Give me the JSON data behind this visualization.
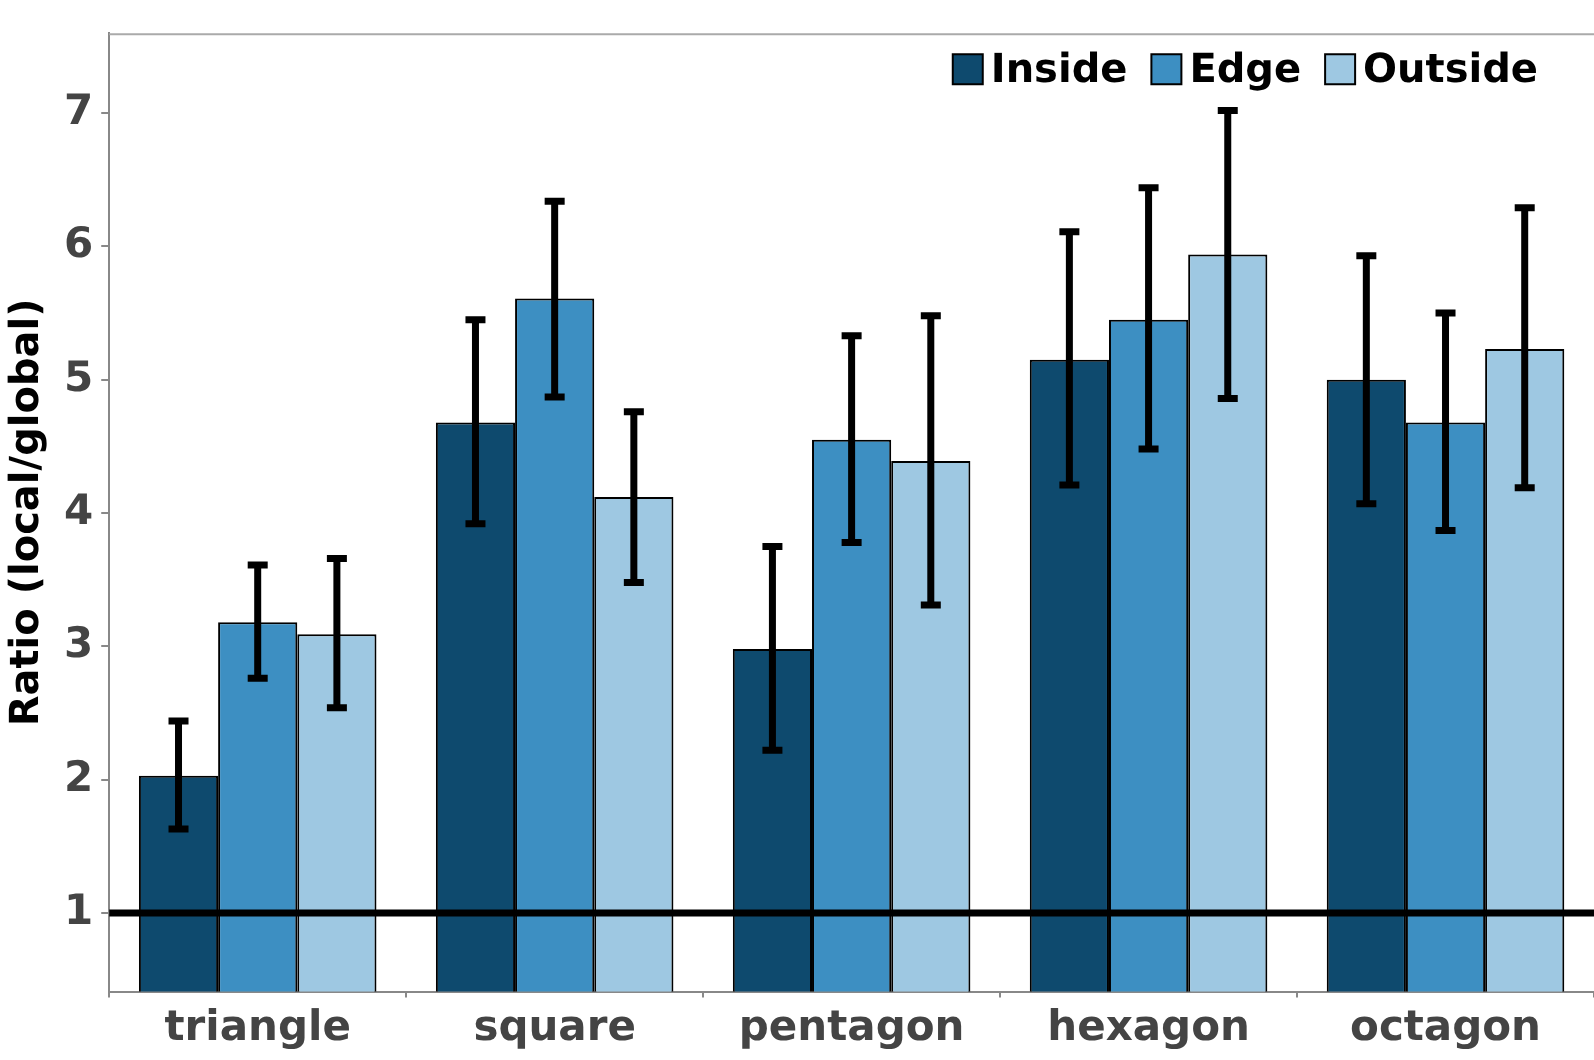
{
  "chart_data": {
    "type": "bar",
    "ylabel": "Ratio (local/global)",
    "categories": [
      "triangle",
      "square",
      "pentagon",
      "hexagon",
      "octagon"
    ],
    "series": [
      {
        "name": "Inside",
        "color": "#0e4a6e",
        "values": [
          2.03,
          4.68,
          2.98,
          5.15,
          5.0
        ],
        "errors": [
          [
            1.63,
            2.44
          ],
          [
            3.92,
            5.45
          ],
          [
            2.22,
            3.75
          ],
          [
            4.21,
            6.11
          ],
          [
            4.07,
            5.93
          ]
        ]
      },
      {
        "name": "Edge",
        "color": "#3d8fc2",
        "values": [
          3.18,
          5.61,
          4.55,
          5.45,
          4.68
        ],
        "errors": [
          [
            2.76,
            3.61
          ],
          [
            4.87,
            6.34
          ],
          [
            3.78,
            5.33
          ],
          [
            4.48,
            6.44
          ],
          [
            3.87,
            5.5
          ]
        ]
      },
      {
        "name": "Outside",
        "color": "#9ec8e2",
        "values": [
          3.09,
          4.12,
          4.39,
          5.94,
          5.23
        ],
        "errors": [
          [
            2.54,
            3.66
          ],
          [
            3.48,
            4.76
          ],
          [
            3.31,
            5.48
          ],
          [
            4.86,
            7.02
          ],
          [
            4.19,
            6.29
          ]
        ]
      }
    ],
    "ylim": [
      0.41,
      7.6
    ],
    "yticks": [
      1,
      2,
      3,
      4,
      5,
      6,
      7
    ],
    "grid": false,
    "legend": "top right",
    "ref_lines": [
      {
        "axis": "y",
        "value": 1,
        "color": "#000000"
      }
    ]
  }
}
